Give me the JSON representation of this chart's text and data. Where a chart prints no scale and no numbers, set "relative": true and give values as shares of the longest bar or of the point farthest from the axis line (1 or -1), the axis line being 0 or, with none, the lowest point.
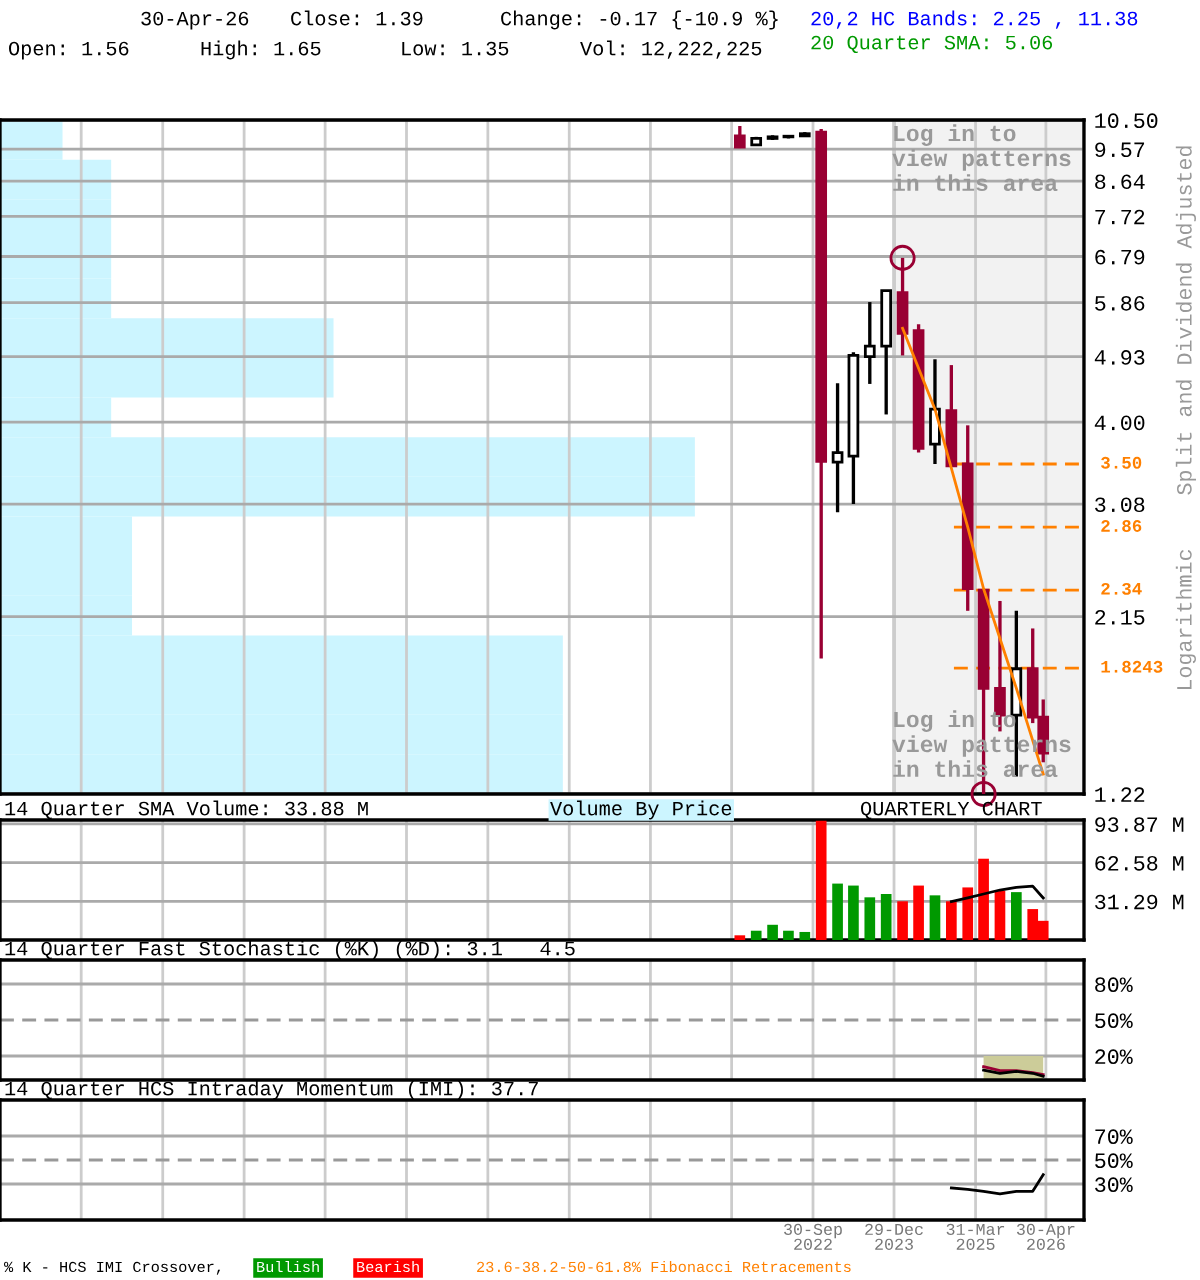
{
  "chart_data": [
    {
      "type": "candlestick",
      "log": true,
      "grid": true,
      "tick_labels": "y",
      "ylabel": "Split and Dividend Adjusted",
      "x": [
        "2021-08-15",
        "2021-11-15",
        "2022-02-15",
        "2022-05-15",
        "2022-08-15",
        "2022-11-15",
        "2023-02-15",
        "2023-05-15",
        "2023-08-15",
        "2023-11-15",
        "2024-02-15",
        "2024-05-15",
        "2024-08-15",
        "2024-11-15",
        "2025-02-15",
        "2025-05-15",
        "2025-08-15",
        "2025-11-15",
        "2026-02-15",
        "2026-04-15"
      ],
      "ohlc": [
        [
          9.98,
          10.3,
          9.6,
          9.63
        ],
        [
          9.7,
          9.95,
          9.7,
          9.9
        ],
        [
          9.9,
          10.0,
          9.85,
          9.95
        ],
        [
          9.95,
          10.0,
          9.9,
          9.97
        ],
        [
          9.98,
          10.1,
          9.98,
          10.05
        ],
        [
          10.1,
          10.2,
          1.88,
          3.53
        ],
        [
          3.52,
          4.53,
          3.0,
          3.63
        ],
        [
          3.59,
          5.0,
          3.08,
          4.95
        ],
        [
          4.93,
          5.87,
          4.52,
          5.1
        ],
        [
          5.1,
          6.09,
          4.1,
          6.09
        ],
        [
          6.05,
          6.76,
          4.95,
          5.31
        ],
        [
          5.36,
          5.47,
          3.63,
          3.68
        ],
        [
          3.73,
          4.89,
          3.5,
          4.17
        ],
        [
          4.15,
          4.8,
          3.48,
          3.48
        ],
        [
          3.5,
          3.96,
          2.19,
          2.35
        ],
        [
          2.34,
          2.34,
          1.22,
          1.71
        ],
        [
          1.71,
          2.26,
          1.49,
          1.57
        ],
        [
          1.57,
          2.19,
          1.29,
          1.82
        ],
        [
          1.82,
          2.07,
          1.53,
          1.56
        ],
        [
          1.56,
          1.65,
          1.35,
          1.39
        ]
      ],
      "colors": [
        "#990033",
        "#ffffff",
        "#ffffff",
        "#ffffff",
        "#ffffff",
        "#990033",
        "#ffffff",
        "#ffffff",
        "#ffffff",
        "#ffffff",
        "#990033",
        "#990033",
        "#ffffff",
        "#990033",
        "#990033",
        "#990033",
        "#990033",
        "#ffffff",
        "#990033",
        "#990033"
      ],
      "series": [
        {
          "type": "line",
          "color": "#ff8000",
          "x": [
            "2024-02-15",
            "2024-08-15",
            "2025-02-15",
            "2025-05-15",
            "2025-11-15",
            "2026-04-15"
          ],
          "values": [
            5.4,
            4.17,
            2.86,
            2.35,
            1.71,
            1.3
          ]
        },
        {
          "type": "scatter",
          "marker": "circle",
          "color": "#990033",
          "x": [
            "2024-02-15",
            "2025-05-15"
          ],
          "values": [
            6.76,
            1.22
          ]
        }
      ],
      "xlim": [
        "2010-03-31",
        "2026-11-30"
      ],
      "ylim": [
        1.22,
        10.5
      ],
      "xticks": [
        {
          "value": "2011-06-30",
          "label": null
        },
        {
          "value": "2012-09-30",
          "label": null
        },
        {
          "value": "2013-12-31",
          "label": null
        },
        {
          "value": "2015-03-31",
          "label": null
        },
        {
          "value": "2016-06-30",
          "label": null
        },
        {
          "value": "2017-09-30",
          "label": null
        },
        {
          "value": "2018-12-31",
          "label": null
        },
        {
          "value": "2020-03-31",
          "label": null
        },
        {
          "value": "2021-06-30",
          "label": null
        },
        {
          "value": "2022-09-30",
          "label": null
        },
        {
          "value": "2023-12-29",
          "label": null
        },
        {
          "value": "2025-03-31",
          "label": null
        },
        {
          "value": "2026-04-30",
          "label": null
        }
      ],
      "yticks": [
        {
          "value": 10.5,
          "label": "10.50"
        },
        {
          "value": 9.57,
          "label": "9.57"
        },
        {
          "value": 8.64,
          "label": "8.64"
        },
        {
          "value": 7.72,
          "label": "7.72"
        },
        {
          "value": 6.79,
          "label": "6.79"
        },
        {
          "value": 5.86,
          "label": "5.86"
        },
        {
          "value": 4.93,
          "label": "4.93"
        },
        {
          "value": 4.0,
          "label": "4.00"
        },
        {
          "value": 3.08,
          "label": "3.08"
        },
        {
          "value": 2.15,
          "label": "2.15"
        },
        {
          "value": 1.22,
          "label": "1.22"
        }
      ],
      "ref_lines": [
        {
          "axis": "y",
          "value": 3.5,
          "label": "3.50",
          "color": "#ff8000",
          "line_style": "dashed"
        },
        {
          "axis": "y",
          "value": 2.86,
          "label": "2.86",
          "color": "#ff8000",
          "line_style": "dashed"
        },
        {
          "axis": "y",
          "value": 2.34,
          "label": "2.34",
          "color": "#ff8000",
          "line_style": "dashed"
        },
        {
          "axis": "y",
          "value": 1.8243,
          "label": "1.8243",
          "color": "#ff8000",
          "line_style": "dashed"
        }
      ],
      "bands": [
        {
          "axis": "x",
          "from": "2023-12-29",
          "to": "2026-11-30",
          "label": null,
          "color": "#f2f2f2"
        }
      ],
      "annotations": [
        "30-Apr-26",
        "Close: 1.39",
        "Change: -0.17 {-10.9 %}",
        "20,2 HC Bands: 2.25 , 11.38",
        "Open: 1.56",
        "High: 1.65",
        "Low: 1.35",
        "Vol: 12,222,225",
        "20 Quarter SMA: 5.06",
        "Log in to\nview patterns\nin this area",
        "Log in to\nview patterns\nin this area",
        "Logarithmic"
      ]
    },
    {
      "type": "bar",
      "orientation": "horizontal",
      "relative": true,
      "tick_labels": false,
      "title": "Volume By Price",
      "color": "#ccf5ff",
      "categories": [
        null,
        null,
        null,
        null,
        null,
        null,
        null,
        null,
        null,
        null,
        null,
        null,
        null,
        null,
        null,
        null,
        null
      ],
      "values": [
        0.09,
        0.16,
        0.16,
        0.16,
        0.16,
        0.48,
        0.48,
        0.16,
        1,
        1,
        0.19,
        0.19,
        0.19,
        0.81,
        0.81,
        0.81,
        0.81
      ]
    },
    {
      "type": "bar",
      "grid": true,
      "tick_labels": "y",
      "title": "14 Quarter SMA Volume: 33.88 M",
      "annotations": [
        "QUARTERLY CHART"
      ],
      "series": [
        {
          "type": "bar",
          "x": [
            "2021-08-15",
            "2021-11-15",
            "2022-02-15",
            "2022-05-15",
            "2022-08-15",
            "2022-11-15",
            "2023-02-15",
            "2023-05-15",
            "2023-08-15",
            "2023-11-15",
            "2024-02-15",
            "2024-05-15",
            "2024-08-15",
            "2024-11-15",
            "2025-02-15",
            "2025-05-15",
            "2025-08-15",
            "2025-11-15",
            "2026-02-15",
            "2026-04-15"
          ],
          "values": [
            3.8,
            7.5,
            12.3,
            7.5,
            6.5,
            96.4,
            45.6,
            44.0,
            34.5,
            37.2,
            31.3,
            44.0,
            36.1,
            31.3,
            42.5,
            65.7,
            39.8,
            38.7,
            25.0,
            15.5
          ],
          "colors": [
            "#ff0000",
            "#009900",
            "#009900",
            "#009900",
            "#009900",
            "#ff0000",
            "#009900",
            "#009900",
            "#009900",
            "#009900",
            "#ff0000",
            "#ff0000",
            "#009900",
            "#ff0000",
            "#ff0000",
            "#ff0000",
            "#ff0000",
            "#009900",
            "#ff0000",
            "#ff0000"
          ]
        },
        {
          "type": "line",
          "color": "#000000",
          "x": [
            "2024-11-15",
            "2025-02-15",
            "2025-05-15",
            "2025-08-15",
            "2025-11-15",
            "2026-02-15",
            "2026-04-15"
          ],
          "values": [
            31.0,
            34.0,
            37.2,
            40.4,
            42.5,
            43.6,
            34.0
          ]
        }
      ],
      "xlim": [
        "2010-03-31",
        "2026-11-30"
      ],
      "ylim": [
        0,
        97
      ],
      "xticks": [
        {
          "value": "2011-06-30",
          "label": null
        },
        {
          "value": "2012-09-30",
          "label": null
        },
        {
          "value": "2013-12-31",
          "label": null
        },
        {
          "value": "2015-03-31",
          "label": null
        },
        {
          "value": "2016-06-30",
          "label": null
        },
        {
          "value": "2017-09-30",
          "label": null
        },
        {
          "value": "2018-12-31",
          "label": null
        },
        {
          "value": "2020-03-31",
          "label": null
        },
        {
          "value": "2021-06-30",
          "label": null
        },
        {
          "value": "2022-09-30",
          "label": null
        },
        {
          "value": "2023-12-29",
          "label": null
        },
        {
          "value": "2025-03-31",
          "label": null
        },
        {
          "value": "2026-04-30",
          "label": null
        }
      ],
      "yticks": [
        {
          "value": 31.29,
          "label": "31.29 M"
        },
        {
          "value": 62.58,
          "label": "62.58 M"
        },
        {
          "value": 93.87,
          "label": "93.87 M"
        }
      ]
    },
    {
      "type": "line",
      "grid": true,
      "tick_labels": "y",
      "title": "14 Quarter Fast Stochastic (%K) (%D): 3.1   4.5",
      "series": [
        {
          "type": "area",
          "color": "#cccc99",
          "x": [
            "2025-05-15",
            "2025-08-15",
            "2025-11-15",
            "2026-02-15",
            "2026-04-15"
          ],
          "values": [
            20,
            20,
            20,
            20,
            20
          ]
        },
        {
          "type": "line",
          "color": "#990033",
          "x": [
            "2025-05-15",
            "2025-08-15",
            "2025-11-15",
            "2026-02-15",
            "2026-04-15"
          ],
          "values": [
            11.1,
            7.8,
            7.8,
            6.1,
            4.5
          ]
        },
        {
          "type": "line",
          "color": "#000000",
          "x": [
            "2025-05-15",
            "2025-08-15",
            "2025-11-15",
            "2026-02-15",
            "2026-04-15"
          ],
          "values": [
            8.3,
            5.6,
            7.2,
            5.6,
            3.1
          ]
        }
      ],
      "xlim": [
        "2010-03-31",
        "2026-11-30"
      ],
      "ylim": [
        0,
        100
      ],
      "xticks": [
        {
          "value": "2011-06-30",
          "label": null
        },
        {
          "value": "2012-09-30",
          "label": null
        },
        {
          "value": "2013-12-31",
          "label": null
        },
        {
          "value": "2015-03-31",
          "label": null
        },
        {
          "value": "2016-06-30",
          "label": null
        },
        {
          "value": "2017-09-30",
          "label": null
        },
        {
          "value": "2018-12-31",
          "label": null
        },
        {
          "value": "2020-03-31",
          "label": null
        },
        {
          "value": "2021-06-30",
          "label": null
        },
        {
          "value": "2022-09-30",
          "label": null
        },
        {
          "value": "2023-12-29",
          "label": null
        },
        {
          "value": "2025-03-31",
          "label": null
        },
        {
          "value": "2026-04-30",
          "label": null
        }
      ],
      "yticks": [
        {
          "value": 80,
          "label": "80%"
        },
        {
          "value": 50,
          "label": "50%"
        },
        {
          "value": 20,
          "label": "20%"
        }
      ],
      "ref_lines": [
        {
          "axis": "y",
          "value": 50,
          "label": null,
          "color": "#999999",
          "line_style": "dashed"
        }
      ]
    },
    {
      "type": "line",
      "grid": true,
      "title": "14 Quarter HCS Intraday Momentum (IMI): 37.7",
      "series": [
        {
          "type": "line",
          "color": "#000000",
          "x": [
            "2024-11-15",
            "2025-02-15",
            "2025-05-15",
            "2025-08-15",
            "2025-11-15",
            "2026-02-15",
            "2026-04-15"
          ],
          "values": [
            26.7,
            25.6,
            23.9,
            21.7,
            23.9,
            23.9,
            37.7
          ]
        }
      ],
      "xlim": [
        "2010-03-31",
        "2026-11-30"
      ],
      "ylim": [
        0,
        100
      ],
      "xticks": [
        {
          "value": "2011-06-30",
          "label": null
        },
        {
          "value": "2012-09-30",
          "label": null
        },
        {
          "value": "2013-12-31",
          "label": null
        },
        {
          "value": "2015-03-31",
          "label": null
        },
        {
          "value": "2016-06-30",
          "label": null
        },
        {
          "value": "2017-09-30",
          "label": null
        },
        {
          "value": "2018-12-31",
          "label": null
        },
        {
          "value": "2020-03-31",
          "label": null
        },
        {
          "value": "2021-06-30",
          "label": null
        },
        {
          "value": "2022-09-30",
          "label": "30-Sep\n2022"
        },
        {
          "value": "2023-12-29",
          "label": "29-Dec\n2023"
        },
        {
          "value": "2025-03-31",
          "label": "31-Mar\n2025"
        },
        {
          "value": "2026-04-30",
          "label": "30-Apr\n2026"
        }
      ],
      "yticks": [
        {
          "value": 70,
          "label": "70%"
        },
        {
          "value": 50,
          "label": "50%"
        },
        {
          "value": 30,
          "label": "30%"
        }
      ],
      "ref_lines": [
        {
          "axis": "y",
          "value": 50,
          "label": null,
          "color": "#999999",
          "line_style": "dashed"
        }
      ],
      "annotations": [
        "% K - HCS IMI Crossover,",
        "Bullish",
        "Bearish",
        "23.6-38.2-50-61.8% Fibonacci Retracements"
      ]
    }
  ]
}
